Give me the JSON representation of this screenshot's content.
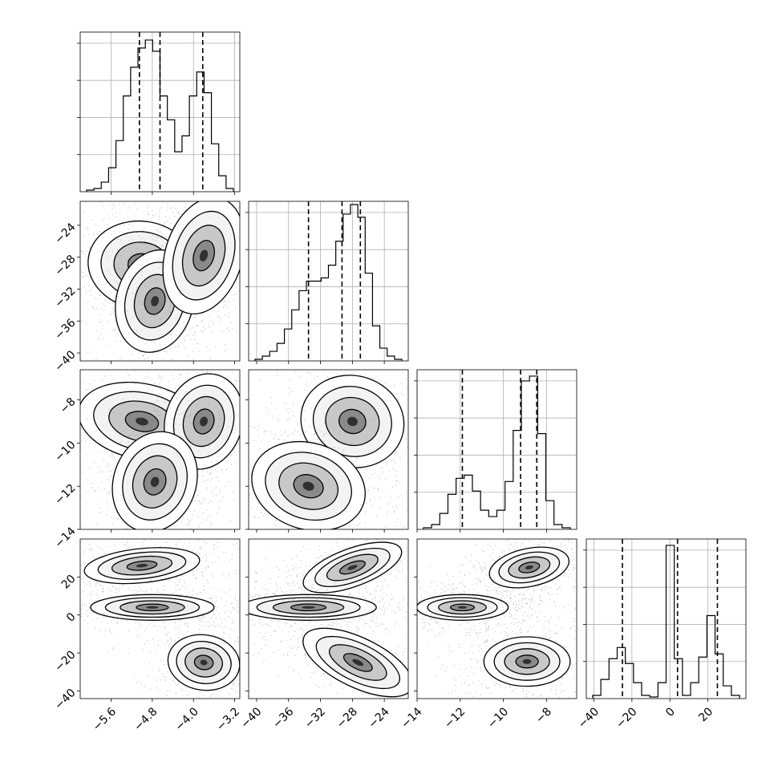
{
  "chart_data": {
    "type": "corner",
    "colors": {
      "mark": "#000000",
      "grid": "#b0b0b0",
      "background": "#ffffff"
    },
    "grid": true,
    "parameters": [
      {
        "range": [
          -6.2,
          -3.1
        ],
        "ticks": [
          -5.6,
          -4.8,
          -4.0,
          -3.2
        ],
        "tick_labels": [
          "−5.6",
          "−4.8",
          "−4.0",
          "−3.2"
        ],
        "quantiles": [
          -5.05,
          -4.65,
          -3.82
        ],
        "hist_heights": [
          0.01,
          0.02,
          0.06,
          0.15,
          0.32,
          0.6,
          0.78,
          0.9,
          0.95,
          0.88,
          0.6,
          0.45,
          0.25,
          0.35,
          0.6,
          0.75,
          0.62,
          0.3,
          0.1,
          0.02
        ]
      },
      {
        "range": [
          -41,
          -21
        ],
        "ticks": [
          -40,
          -36,
          -32,
          -28,
          -24
        ],
        "tick_labels": [
          "−40",
          "−36",
          "−32",
          "−28",
          "−24"
        ],
        "quantiles": [
          -33.5,
          -29.3,
          -27.0
        ],
        "hist_heights": [
          0.01,
          0.03,
          0.06,
          0.11,
          0.2,
          0.32,
          0.44,
          0.5,
          0.5,
          0.52,
          0.6,
          0.75,
          0.92,
          0.98,
          0.9,
          0.55,
          0.22,
          0.08,
          0.03,
          0.01
        ]
      },
      {
        "range": [
          -14,
          -6.6
        ],
        "ticks": [
          -14,
          -12,
          -10,
          -8
        ],
        "tick_labels": [
          "−14",
          "−12",
          "−10",
          "−8"
        ],
        "quantiles": [
          -11.9,
          -9.2,
          -8.45
        ],
        "hist_heights": [
          0.01,
          0.03,
          0.1,
          0.22,
          0.32,
          0.34,
          0.24,
          0.12,
          0.08,
          0.12,
          0.3,
          0.62,
          0.93,
          0.96,
          0.6,
          0.18,
          0.03,
          0.01
        ]
      },
      {
        "range": [
          -44,
          40
        ],
        "ticks": [
          -40,
          -20,
          0,
          20
        ],
        "tick_labels": [
          "−40",
          "−20",
          "0",
          "20"
        ],
        "quantiles": [
          -25,
          4,
          25
        ],
        "hist_heights": [
          0.02,
          0.12,
          0.25,
          0.32,
          0.22,
          0.1,
          0.02,
          0.01,
          0.1,
          0.96,
          0.25,
          0.02,
          0.1,
          0.26,
          0.52,
          0.28,
          0.08,
          0.02
        ]
      }
    ],
    "modes": [
      {
        "p0": -5.0,
        "p1": -29.0,
        "p2": -9.0,
        "p3": 25.0,
        "weight": 0.33
      },
      {
        "p0": -4.8,
        "p1": -33.5,
        "p2": -11.9,
        "p3": 4.0,
        "weight": 0.34
      },
      {
        "p0": -3.8,
        "p1": -27.5,
        "p2": -8.9,
        "p3": -25.0,
        "weight": 0.33
      }
    ],
    "panels_2d": [
      {
        "x_param": 0,
        "y_param": 1,
        "blobs": [
          {
            "cx": -5.0,
            "cy": -29.0,
            "sx": 0.42,
            "sy": 2.2,
            "rot": -0.15
          },
          {
            "cx": -4.75,
            "cy": -33.5,
            "sx": 0.3,
            "sy": 2.6,
            "rot": -0.25
          },
          {
            "cx": -3.8,
            "cy": -27.8,
            "sx": 0.3,
            "sy": 3.0,
            "rot": -0.3
          }
        ]
      },
      {
        "x_param": 0,
        "y_param": 2,
        "blobs": [
          {
            "cx": -5.0,
            "cy": -9.0,
            "sx": 0.5,
            "sy": 0.7,
            "rot": -0.2
          },
          {
            "cx": -3.8,
            "cy": -9.0,
            "sx": 0.3,
            "sy": 0.9,
            "rot": -0.3
          },
          {
            "cx": -4.75,
            "cy": -11.8,
            "sx": 0.32,
            "sy": 0.95,
            "rot": -0.35
          }
        ]
      },
      {
        "x_param": 1,
        "y_param": 2,
        "blobs": [
          {
            "cx": -28.0,
            "cy": -9.0,
            "sx": 2.6,
            "sy": 0.85,
            "rot": -0.25
          },
          {
            "cx": -33.5,
            "cy": -12.0,
            "sx": 2.9,
            "sy": 0.8,
            "rot": -0.3
          }
        ]
      },
      {
        "x_param": 0,
        "y_param": 3,
        "blobs": [
          {
            "cx": -5.0,
            "cy": 26.0,
            "sx": 0.45,
            "sy": 3.6,
            "rot": 0.1
          },
          {
            "cx": -4.8,
            "cy": 4.0,
            "sx": 0.48,
            "sy": 2.7,
            "rot": 0.0
          },
          {
            "cx": -3.8,
            "cy": -25.0,
            "sx": 0.28,
            "sy": 5.8,
            "rot": -0.15
          }
        ]
      },
      {
        "x_param": 1,
        "y_param": 3,
        "blobs": [
          {
            "cx": -28.0,
            "cy": 25.0,
            "sx": 2.6,
            "sy": 4.0,
            "rot": 0.35
          },
          {
            "cx": -33.5,
            "cy": 4.0,
            "sx": 3.4,
            "sy": 2.7,
            "rot": 0.0
          },
          {
            "cx": -27.3,
            "cy": -25.0,
            "sx": 3.0,
            "sy": 5.2,
            "rot": -0.45
          }
        ]
      },
      {
        "x_param": 2,
        "y_param": 3,
        "blobs": [
          {
            "cx": -8.8,
            "cy": 25.0,
            "sx": 0.75,
            "sy": 4.0,
            "rot": 0.2
          },
          {
            "cx": -11.9,
            "cy": 4.0,
            "sx": 0.85,
            "sy": 2.7,
            "rot": 0.0
          },
          {
            "cx": -8.9,
            "cy": -24.5,
            "sx": 0.8,
            "sy": 5.2,
            "rot": 0.0
          }
        ]
      }
    ]
  }
}
